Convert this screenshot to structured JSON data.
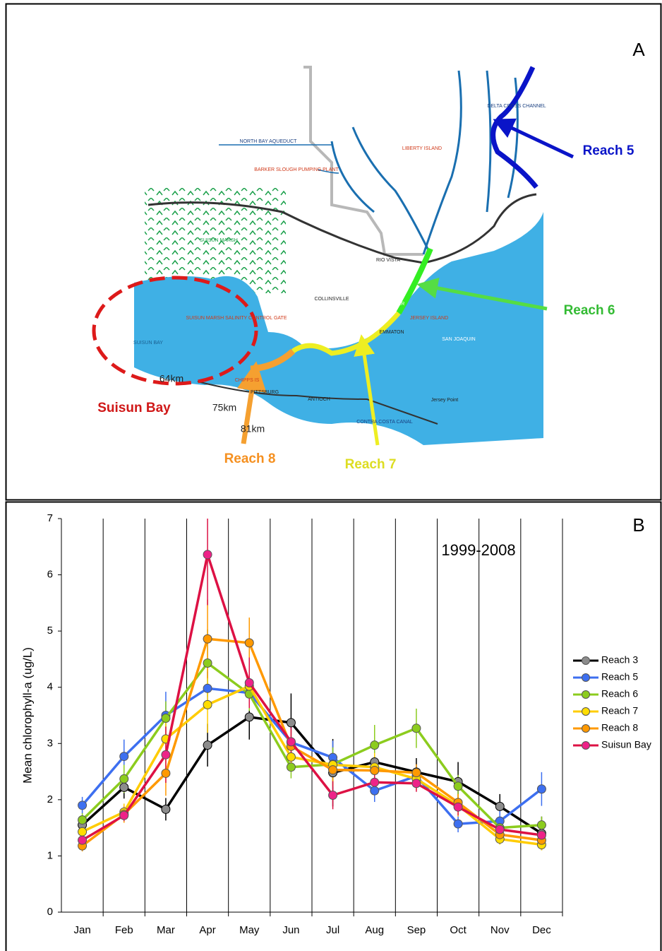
{
  "map": {
    "panel_label": "A",
    "reaches": [
      "Reach 5",
      "Reach 6",
      "Reach 7",
      "Reach 8",
      "Suisun Bay"
    ],
    "distances": [
      "64km",
      "75km",
      "81km"
    ],
    "labels": [
      "NORTH BAY AQUEDUCT",
      "BARKER SLOUGH PUMPING PLANT",
      "LIBERTY ISLAND",
      "DELTA CROSS CHANNEL",
      "SUISUN MARSH",
      "RIO VISTA",
      "SUISUN MARSH SALINITY CONTROL GATE",
      "SUISUN BAY",
      "COLLINSVILLE",
      "SACRAMENTO RIVER",
      "EMMATON",
      "JERSEY ISLAND",
      "SAN JOAQUIN",
      "CHIPPS IS",
      "PITTSBURG",
      "ANTIOCH",
      "CONTRA COSTA CANAL",
      "Jersey Point"
    ]
  },
  "chart_data": {
    "type": "line",
    "panel_label": "B",
    "annotation": "1999-2008",
    "y_label": "Mean chlorophyll-a (ug/L)",
    "categories": [
      "Jan",
      "Feb",
      "Mar",
      "Apr",
      "May",
      "Jun",
      "Jul",
      "Aug",
      "Sep",
      "Oct",
      "Nov",
      "Dec"
    ],
    "ylim": [
      0,
      7
    ],
    "yticks": [
      0,
      1,
      2,
      3,
      4,
      5,
      6,
      7
    ],
    "grid": true,
    "legend": "right",
    "series": [
      {
        "name": "Reach 3",
        "color": "#000000",
        "marker_color": "#8c8c8c",
        "values": [
          1.55,
          2.22,
          1.83,
          2.97,
          3.47,
          3.37,
          2.48,
          2.67,
          2.49,
          2.32,
          1.88,
          1.4
        ],
        "errors": [
          0.12,
          0.2,
          0.2,
          0.38,
          0.4,
          0.52,
          0.6,
          0.3,
          0.25,
          0.35,
          0.22,
          0.3
        ]
      },
      {
        "name": "Reach 5",
        "color": "#3d6ff0",
        "marker_color": "#3d6ff0",
        "values": [
          1.9,
          2.77,
          3.5,
          3.98,
          3.9,
          3.02,
          2.75,
          2.16,
          2.42,
          1.57,
          1.62,
          2.19
        ],
        "errors": [
          0.15,
          0.3,
          0.42,
          0.3,
          0.25,
          0.3,
          0.3,
          0.2,
          0.2,
          0.15,
          0.2,
          0.3
        ]
      },
      {
        "name": "Reach 6",
        "color": "#8ccc1e",
        "marker_color": "#8ccc1e",
        "values": [
          1.64,
          2.37,
          3.45,
          4.43,
          3.88,
          2.58,
          2.63,
          2.97,
          3.27,
          2.24,
          1.5,
          1.55
        ],
        "errors": [
          0.12,
          0.25,
          0.3,
          0.6,
          0.3,
          0.2,
          0.3,
          0.36,
          0.35,
          0.2,
          0.12,
          0.15
        ]
      },
      {
        "name": "Reach 7",
        "color": "#ffcc00",
        "marker_color": "#ffdd00",
        "values": [
          1.43,
          1.78,
          3.08,
          3.69,
          4.02,
          2.76,
          2.62,
          2.58,
          2.37,
          1.9,
          1.3,
          1.2
        ],
        "errors": [
          0.1,
          0.15,
          0.3,
          0.5,
          0.3,
          0.25,
          0.2,
          0.25,
          0.2,
          0.2,
          0.1,
          0.1
        ]
      },
      {
        "name": "Reach 8",
        "color": "#ff9900",
        "marker_color": "#ff9900",
        "values": [
          1.18,
          1.74,
          2.47,
          4.86,
          4.79,
          2.95,
          2.53,
          2.52,
          2.48,
          1.95,
          1.38,
          1.28
        ],
        "errors": [
          0.1,
          0.15,
          0.4,
          0.7,
          0.45,
          0.3,
          0.3,
          0.2,
          0.15,
          0.15,
          0.1,
          0.1
        ]
      },
      {
        "name": "Suisun Bay",
        "color": "#dd1144",
        "marker_color": "#ee2288",
        "values": [
          1.28,
          1.72,
          2.8,
          6.36,
          4.08,
          3.03,
          2.08,
          2.31,
          2.29,
          1.87,
          1.47,
          1.37
        ],
        "errors": [
          0.1,
          0.1,
          0.5,
          0.9,
          0.45,
          0.3,
          0.25,
          0.2,
          0.15,
          0.15,
          0.1,
          0.1
        ]
      }
    ]
  }
}
